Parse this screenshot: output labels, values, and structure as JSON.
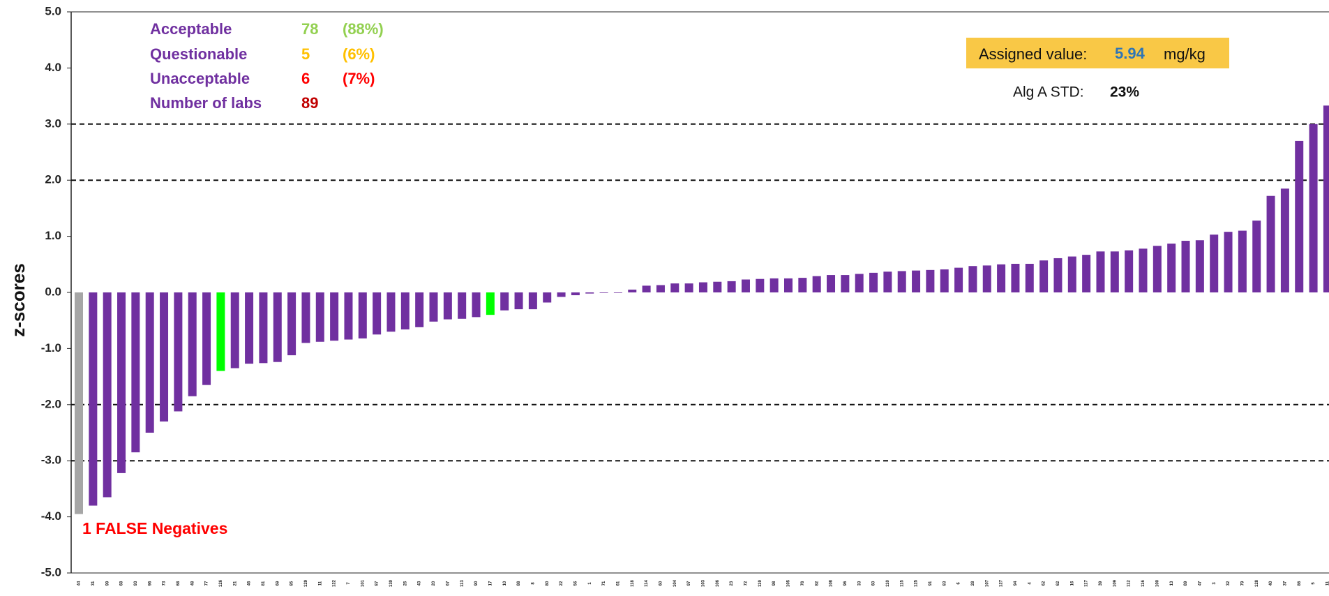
{
  "chart_data": {
    "type": "bar",
    "y_label": "z-scores",
    "ylim": [
      -5,
      5
    ],
    "yticks": [
      {
        "value": 5,
        "label": "5.0"
      },
      {
        "value": 4,
        "label": "4.0"
      },
      {
        "value": 3,
        "label": "3.0"
      },
      {
        "value": 2,
        "label": "2.0"
      },
      {
        "value": 1,
        "label": "1.0"
      },
      {
        "value": 0,
        "label": "0.0"
      },
      {
        "value": -1,
        "label": "-1.0"
      },
      {
        "value": -2,
        "label": "-2.0"
      },
      {
        "value": -3,
        "label": "-3.0"
      },
      {
        "value": -4,
        "label": "-4.0"
      },
      {
        "value": -5,
        "label": "-5.0"
      }
    ],
    "reference_lines": [
      3,
      2,
      -2,
      -3
    ],
    "categories": [
      "44",
      "31",
      "99",
      "68",
      "93",
      "96",
      "73",
      "68",
      "48",
      "77",
      "126",
      "21",
      "46",
      "81",
      "69",
      "85",
      "129",
      "11",
      "122",
      "7",
      "101",
      "87",
      "130",
      "25",
      "43",
      "20",
      "67",
      "113",
      "90",
      "17",
      "10",
      "88",
      "8",
      "80",
      "22",
      "56",
      "1",
      "71",
      "61",
      "118",
      "114",
      "60",
      "104",
      "97",
      "103",
      "106",
      "23",
      "72",
      "119",
      "98",
      "105",
      "78",
      "82",
      "108",
      "96",
      "33",
      "60",
      "110",
      "115",
      "125",
      "91",
      "83",
      "6",
      "28",
      "107",
      "127",
      "94",
      "4",
      "62",
      "62",
      "16",
      "117",
      "39",
      "109",
      "112",
      "116",
      "100",
      "13",
      "89",
      "47",
      "3",
      "32",
      "79",
      "128",
      "40",
      "37",
      "86",
      "5",
      "11"
    ],
    "values": [
      -3.95,
      -3.8,
      -3.65,
      -3.22,
      -2.85,
      -2.5,
      -2.3,
      -2.12,
      -1.85,
      -1.65,
      -1.4,
      -1.35,
      -1.27,
      -1.26,
      -1.24,
      -1.12,
      -0.9,
      -0.88,
      -0.86,
      -0.84,
      -0.82,
      -0.75,
      -0.7,
      -0.66,
      -0.62,
      -0.52,
      -0.48,
      -0.47,
      -0.44,
      -0.4,
      -0.32,
      -0.3,
      -0.3,
      -0.18,
      -0.08,
      -0.05,
      -0.02,
      -0.01,
      -0.01,
      0.05,
      0.12,
      0.13,
      0.16,
      0.16,
      0.18,
      0.19,
      0.2,
      0.23,
      0.24,
      0.25,
      0.25,
      0.26,
      0.29,
      0.31,
      0.31,
      0.33,
      0.35,
      0.37,
      0.38,
      0.39,
      0.4,
      0.41,
      0.44,
      0.47,
      0.48,
      0.5,
      0.51,
      0.51,
      0.57,
      0.61,
      0.64,
      0.67,
      0.73,
      0.73,
      0.75,
      0.78,
      0.83,
      0.87,
      0.92,
      0.93,
      1.03,
      1.08,
      1.1,
      1.28,
      1.72,
      1.85,
      2.7,
      3.0,
      3.33
    ],
    "colors": [
      "#a6a6a6",
      "#7030a0",
      "#7030a0",
      "#7030a0",
      "#7030a0",
      "#7030a0",
      "#7030a0",
      "#7030a0",
      "#7030a0",
      "#7030a0",
      "#00ff00",
      "#7030a0",
      "#7030a0",
      "#7030a0",
      "#7030a0",
      "#7030a0",
      "#7030a0",
      "#7030a0",
      "#7030a0",
      "#7030a0",
      "#7030a0",
      "#7030a0",
      "#7030a0",
      "#7030a0",
      "#7030a0",
      "#7030a0",
      "#7030a0",
      "#7030a0",
      "#7030a0",
      "#00ff00",
      "#7030a0",
      "#7030a0",
      "#7030a0",
      "#7030a0",
      "#7030a0",
      "#7030a0",
      "#7030a0",
      "#7030a0",
      "#7030a0",
      "#7030a0",
      "#7030a0",
      "#7030a0",
      "#7030a0",
      "#7030a0",
      "#7030a0",
      "#7030a0",
      "#7030a0",
      "#7030a0",
      "#7030a0",
      "#7030a0",
      "#7030a0",
      "#7030a0",
      "#7030a0",
      "#7030a0",
      "#7030a0",
      "#7030a0",
      "#7030a0",
      "#7030a0",
      "#7030a0",
      "#7030a0",
      "#7030a0",
      "#7030a0",
      "#7030a0",
      "#7030a0",
      "#7030a0",
      "#7030a0",
      "#7030a0",
      "#7030a0",
      "#7030a0",
      "#7030a0",
      "#7030a0",
      "#7030a0",
      "#7030a0",
      "#7030a0",
      "#7030a0",
      "#7030a0",
      "#7030a0",
      "#7030a0",
      "#7030a0",
      "#7030a0",
      "#7030a0",
      "#7030a0",
      "#7030a0",
      "#7030a0",
      "#7030a0",
      "#7030a0",
      "#7030a0",
      "#7030a0",
      "#7030a0"
    ],
    "summary": [
      {
        "label": "Acceptable",
        "count": 78,
        "percent": "(88%)",
        "color": "#92d050"
      },
      {
        "label": "Questionable",
        "count": 5,
        "percent": "(6%)",
        "color": "#ffc000"
      },
      {
        "label": "Unacceptable",
        "count": 6,
        "percent": "(7%)",
        "color": "#ff0000"
      },
      {
        "label": "Number of labs",
        "count": 89,
        "color": "#c00000"
      }
    ],
    "assigned_value": {
      "label": "Assigned value:",
      "value": "5.94",
      "unit": "mg/kg"
    },
    "std": {
      "label": "Alg A STD:",
      "value": "23%"
    },
    "annotation": "1 FALSE Negatives"
  }
}
